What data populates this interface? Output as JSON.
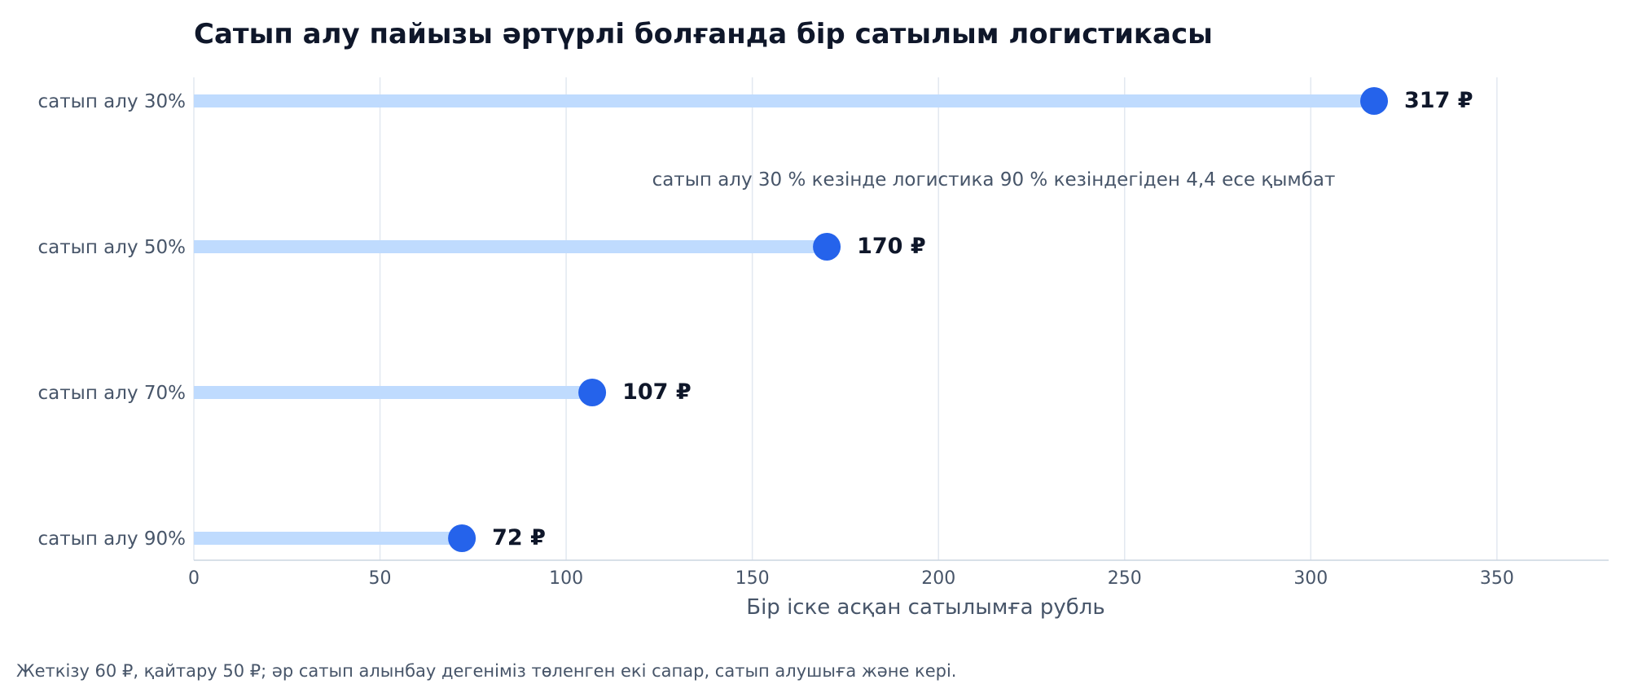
{
  "chart_data": {
    "type": "dot-plot",
    "title": "Сатып алу пайызы әртүрлі болғанда бір сатылым логистикасы",
    "xlabel": "Бір іске асқан сатылымға рубль",
    "ylabel": "",
    "xlim": [
      0,
      380
    ],
    "xticks": [
      0,
      50,
      100,
      150,
      200,
      250,
      300,
      350
    ],
    "categories": [
      "сатып алу 30%",
      "сатып алу 50%",
      "сатып алу 70%",
      "сатып алу 90%"
    ],
    "values": [
      317,
      170,
      107,
      72
    ],
    "value_labels": [
      "317 ₽",
      "170 ₽",
      "107 ₽",
      "72 ₽"
    ],
    "annotation": "сатып алу 30 % кезінде логистика 90 % кезіндегіден 4,4 есе қымбат",
    "footnote": "Жеткізу 60 ₽, қайтару 50 ₽; әр сатып алынбау дегеніміз төленген екі сапар, сатып алушыға және кері.",
    "grid": "vertical",
    "colors": {
      "dot": "#2563eb",
      "stem": "#bfdbfe",
      "grid": "#e2e8f0",
      "text": "#0f172a",
      "muted": "#475569"
    }
  }
}
